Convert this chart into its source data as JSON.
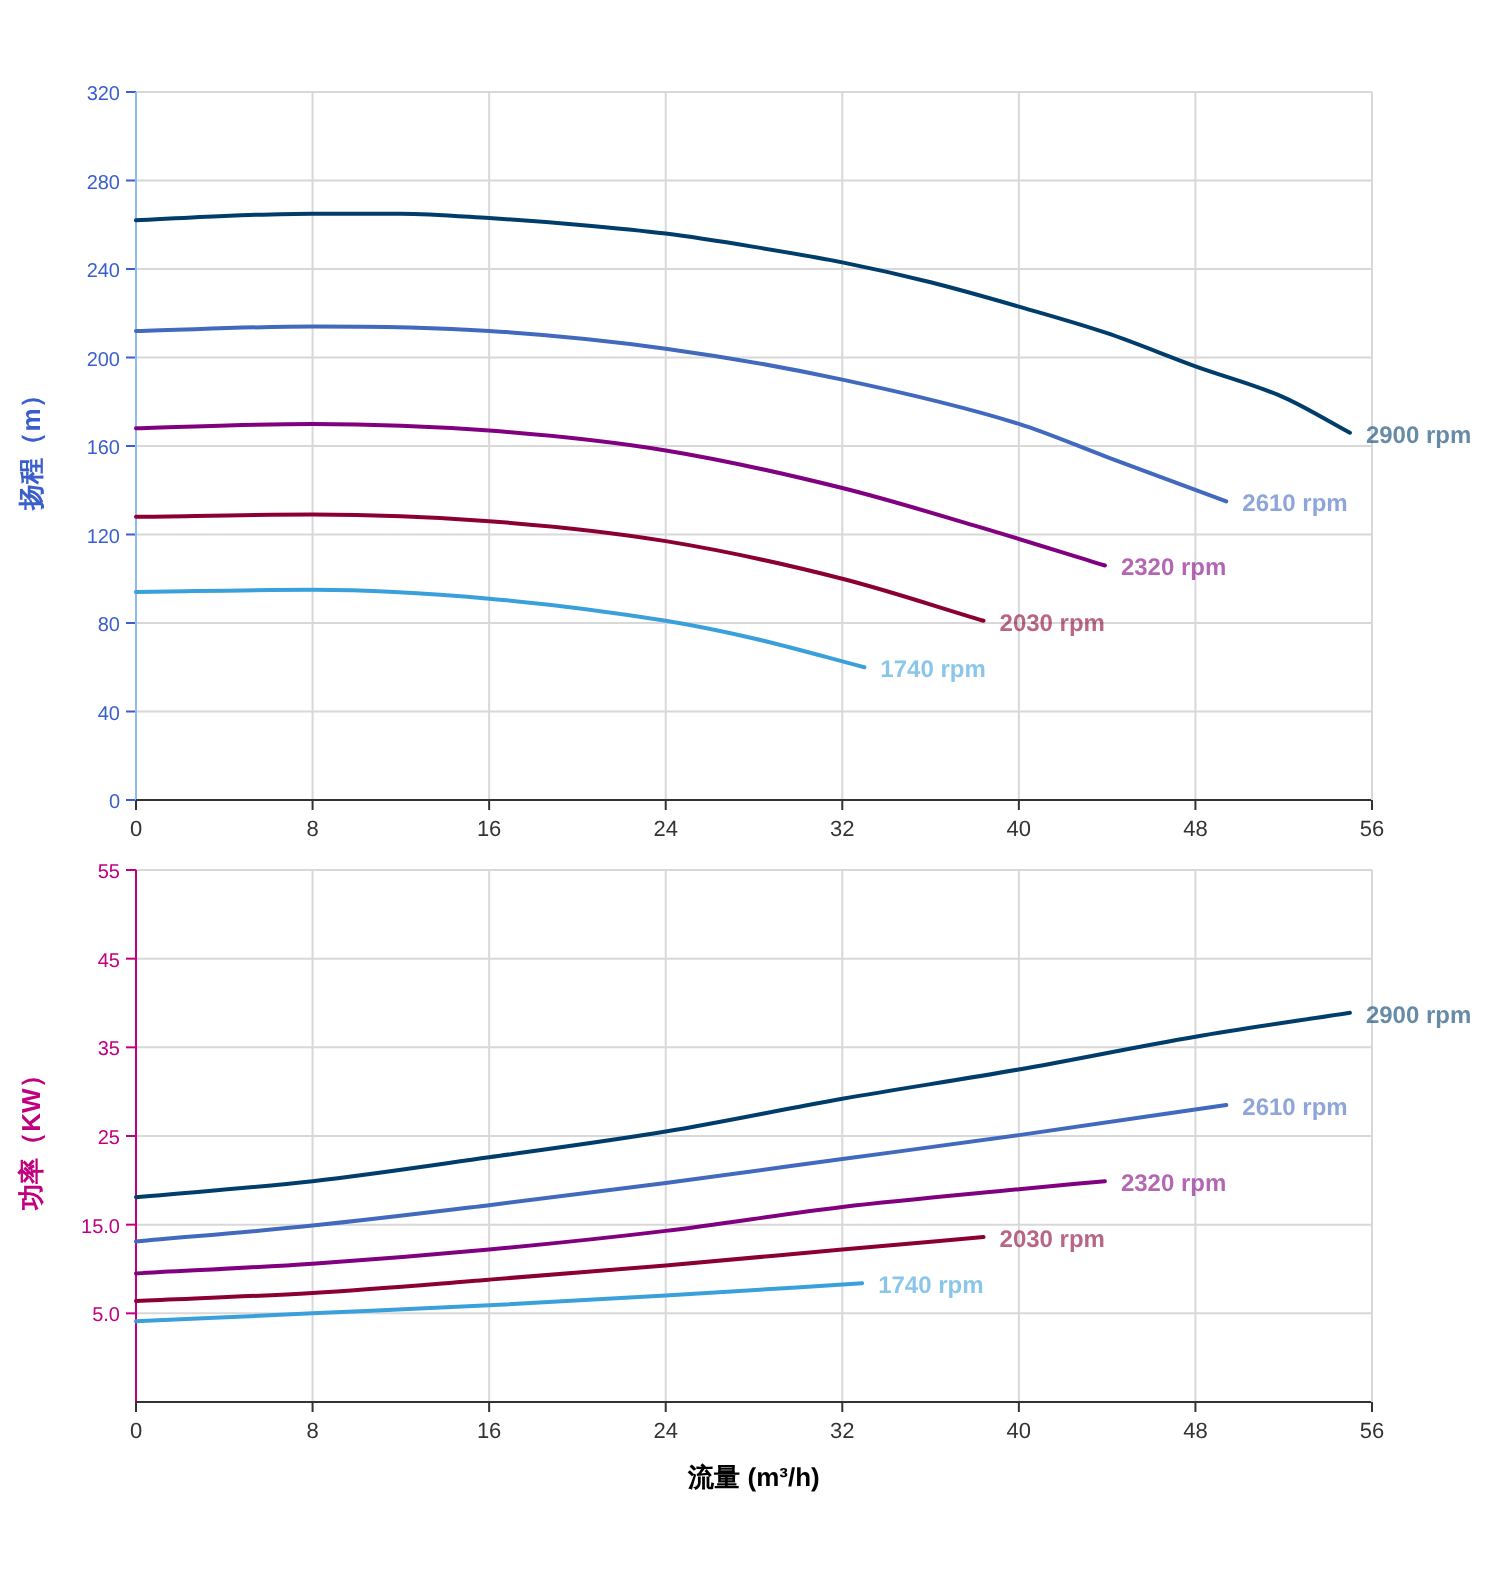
{
  "chart_data": [
    {
      "type": "line",
      "ylabel": "扬程（m）",
      "xlim": [
        0,
        56
      ],
      "xticks": [
        0,
        8,
        16,
        24,
        32,
        40,
        48,
        56
      ],
      "ylim": [
        0,
        320
      ],
      "yticks": [
        0,
        40,
        80,
        120,
        160,
        200,
        240,
        280,
        320
      ],
      "grid": true,
      "series": [
        {
          "name": "2900 rpm",
          "color": "#003d6b",
          "x": [
            0,
            4,
            8,
            12,
            16,
            20,
            24,
            28,
            32,
            36,
            40,
            44,
            48,
            52,
            55
          ],
          "values": [
            262,
            264,
            265,
            265,
            263,
            260,
            256,
            250,
            243,
            234,
            223,
            211,
            196,
            182,
            166
          ]
        },
        {
          "name": "2610 rpm",
          "color": "#4169be",
          "x": [
            0,
            8,
            16,
            24,
            32,
            40,
            44,
            49.4
          ],
          "values": [
            212,
            214,
            212,
            204,
            190,
            170,
            155,
            135
          ]
        },
        {
          "name": "2320 rpm",
          "color": "#800080",
          "x": [
            0,
            8,
            16,
            24,
            32,
            38,
            43.9
          ],
          "values": [
            168,
            170,
            167,
            158,
            141,
            124,
            106
          ]
        },
        {
          "name": "2030 rpm",
          "color": "#8b0033",
          "x": [
            0,
            8,
            16,
            24,
            32,
            38.4
          ],
          "values": [
            128,
            129,
            126,
            117,
            100,
            81
          ]
        },
        {
          "name": "1740 rpm",
          "color": "#3aa0dc",
          "x": [
            0,
            8,
            16,
            24,
            28,
            33
          ],
          "values": [
            94,
            95,
            91,
            81,
            73,
            60
          ]
        }
      ]
    },
    {
      "type": "line",
      "ylabel": "功率（KW）",
      "xlabel": "流量 (m³/h)",
      "xlim": [
        0,
        56
      ],
      "xticks": [
        0,
        8,
        16,
        24,
        32,
        40,
        48,
        56
      ],
      "ylim": [
        -5,
        55
      ],
      "yticks": [
        {
          "value": 5,
          "label": "5.0"
        },
        {
          "value": 15,
          "label": "15.0"
        },
        25,
        35,
        45,
        55
      ],
      "grid": true,
      "series": [
        {
          "name": "2900 rpm",
          "color": "#003d6b",
          "x": [
            0,
            8,
            16,
            24,
            32,
            40,
            48,
            55
          ],
          "values": [
            18.1,
            19.9,
            22.6,
            25.5,
            29.2,
            32.5,
            36.2,
            38.9
          ]
        },
        {
          "name": "2610 rpm",
          "color": "#4169be",
          "x": [
            0,
            8,
            16,
            24,
            32,
            40,
            49.4
          ],
          "values": [
            13.1,
            14.9,
            17.2,
            19.7,
            22.4,
            25.1,
            28.5
          ]
        },
        {
          "name": "2320 rpm",
          "color": "#800080",
          "x": [
            0,
            8,
            16,
            24,
            32,
            40,
            43.9
          ],
          "values": [
            9.5,
            10.6,
            12.2,
            14.3,
            17,
            19,
            19.9
          ]
        },
        {
          "name": "2030 rpm",
          "color": "#8b0033",
          "x": [
            0,
            8,
            16,
            24,
            32,
            38.4
          ],
          "values": [
            6.4,
            7.3,
            8.8,
            10.4,
            12.2,
            13.6
          ]
        },
        {
          "name": "1740 rpm",
          "color": "#3aa0dc",
          "x": [
            0,
            8,
            16,
            24,
            32.9
          ],
          "values": [
            4.1,
            5,
            5.9,
            7,
            8.4
          ]
        }
      ]
    }
  ]
}
